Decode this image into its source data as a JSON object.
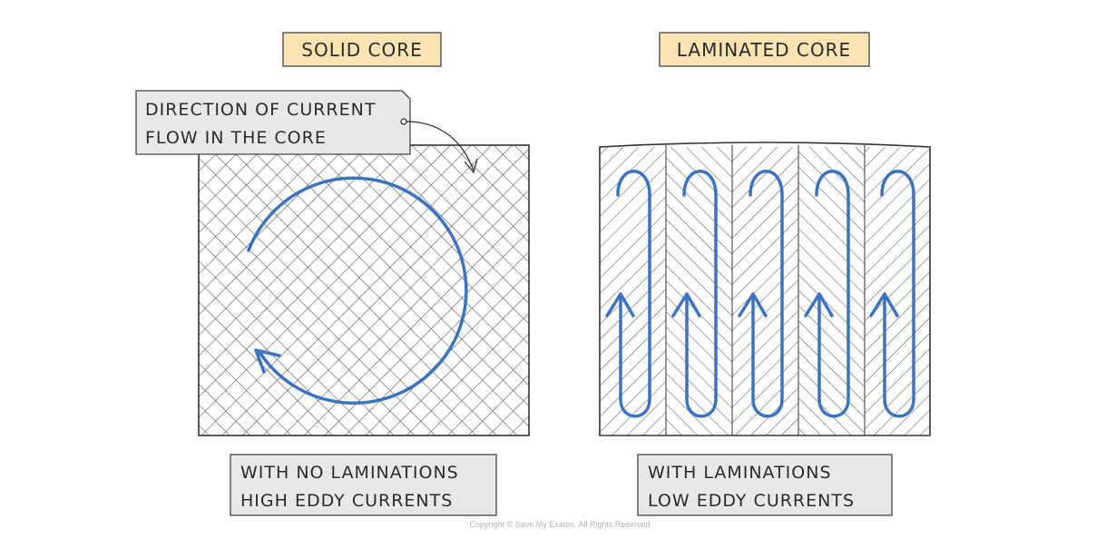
{
  "solid": {
    "title": "SOLID CORE",
    "callout_line1": "DIRECTION OF CURRENT",
    "callout_line2": "FLOW IN THE CORE",
    "caption_line1": "WITH NO LAMINATIONS",
    "caption_line2": "HIGH EDDY CURRENTS"
  },
  "laminated": {
    "title": "LAMINATED CORE",
    "caption_line1": "WITH LAMINATIONS",
    "caption_line2": "LOW EDDY CURRENTS"
  },
  "copyright": "Copyright © Save My Exams. All Rights Reserved",
  "colors": {
    "title_fill": "#fbe3b2",
    "caption_fill": "#e8e8e8",
    "current": "#3a73c4",
    "hatch": "#555555"
  }
}
